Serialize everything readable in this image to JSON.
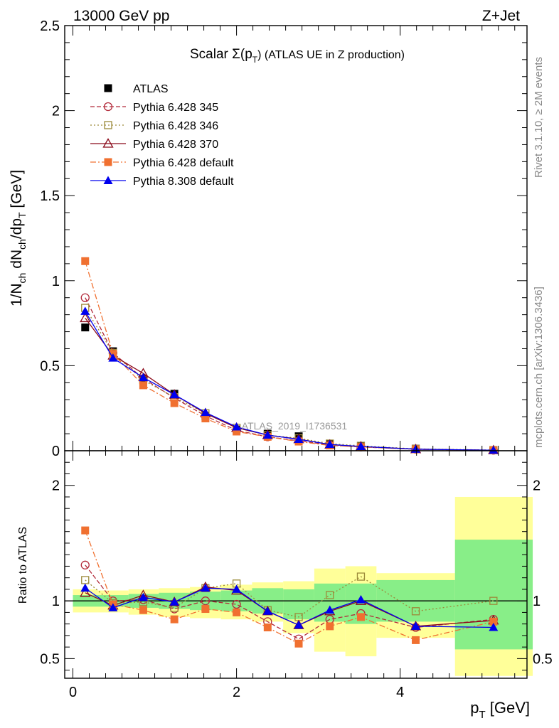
{
  "chart_data": [
    {
      "type": "line",
      "panel": "main",
      "header_left": "13000 GeV pp",
      "header_right": "Z+Jet",
      "title_prefix": "Scalar Σ(p",
      "title_sub": "T",
      "title_suffix": ") (ATLAS UE in Z production)",
      "ylabel": "1/N_ch dN_ch/dp_T [GeV]",
      "ylim": [
        0,
        2.5
      ],
      "yticks": [
        "0",
        "0.5",
        "1",
        "1.5",
        "2",
        "2.5"
      ],
      "watermark": "ATLAS_2019_I1736531",
      "x": [
        0.15,
        0.49,
        0.86,
        1.24,
        1.62,
        2.0,
        2.38,
        2.76,
        3.14,
        3.52,
        4.19,
        5.14
      ],
      "series": [
        {
          "name": "ATLAS",
          "color": "#000000",
          "marker": "square-filled",
          "dash": "none",
          "values": [
            0.725,
            0.585,
            0.42,
            0.335,
            0.205,
            0.125,
            0.1,
            0.085,
            0.04,
            0.025,
            0.012,
            0.004
          ]
        },
        {
          "name": "Pythia 6.428 345",
          "color": "#b22a3a",
          "marker": "circle-open",
          "dash": "6,3",
          "values": [
            0.9,
            0.575,
            0.425,
            0.31,
            0.205,
            0.12,
            0.082,
            0.058,
            0.034,
            0.022,
            0.009,
            0.003
          ]
        },
        {
          "name": "Pythia 6.428 346",
          "color": "#9c8a3a",
          "marker": "square-open",
          "dash": "2,3",
          "values": [
            0.84,
            0.575,
            0.415,
            0.315,
            0.22,
            0.135,
            0.092,
            0.073,
            0.042,
            0.029,
            0.011,
            0.004
          ]
        },
        {
          "name": "Pythia 6.428 370",
          "color": "#8b0a1a",
          "marker": "triangle-open",
          "dash": "none",
          "values": [
            0.78,
            0.56,
            0.455,
            0.33,
            0.22,
            0.135,
            0.092,
            0.068,
            0.036,
            0.025,
            0.009,
            0.003
          ]
        },
        {
          "name": "Pythia 6.428 default",
          "color": "#f07030",
          "marker": "square-filled",
          "dash": "8,3,2,3",
          "values": [
            1.115,
            0.57,
            0.385,
            0.28,
            0.19,
            0.113,
            0.082,
            0.054,
            0.031,
            0.022,
            0.008,
            0.003
          ]
        },
        {
          "name": "Pythia 8.308 default",
          "color": "#0000ee",
          "marker": "triangle-filled",
          "dash": "none",
          "values": [
            0.82,
            0.545,
            0.43,
            0.33,
            0.225,
            0.14,
            0.092,
            0.067,
            0.037,
            0.025,
            0.009,
            0.003
          ]
        }
      ]
    },
    {
      "type": "line",
      "panel": "ratio",
      "ylabel": "Ratio to ATLAS",
      "xlabel": "p_T [GeV]",
      "xlim": [
        -0.1,
        5.55
      ],
      "xticks": [
        "0",
        "2",
        "4"
      ],
      "ylim": [
        0.33,
        2.3
      ],
      "yticks": [
        "0.5",
        "1",
        "2"
      ],
      "x": [
        0.15,
        0.49,
        0.86,
        1.24,
        1.62,
        2.0,
        2.38,
        2.76,
        3.14,
        3.52,
        4.19,
        5.14
      ],
      "bin_edges": [
        0.0,
        0.3,
        0.68,
        1.05,
        1.43,
        1.81,
        2.19,
        2.57,
        2.95,
        3.33,
        3.71,
        4.67,
        5.62
      ],
      "band_outer": [
        [
          0.9,
          1.1
        ],
        [
          0.9,
          1.09
        ],
        [
          0.88,
          1.1
        ],
        [
          0.86,
          1.11
        ],
        [
          0.85,
          1.12
        ],
        [
          0.84,
          1.14
        ],
        [
          0.82,
          1.16
        ],
        [
          0.72,
          1.17
        ],
        [
          0.56,
          1.28
        ],
        [
          0.52,
          1.3
        ],
        [
          0.68,
          1.24
        ],
        [
          0.35,
          1.9
        ]
      ],
      "band_inner": [
        [
          0.95,
          1.05
        ],
        [
          0.95,
          1.05
        ],
        [
          0.94,
          1.06
        ],
        [
          0.93,
          1.07
        ],
        [
          0.92,
          1.08
        ],
        [
          0.91,
          1.09
        ],
        [
          0.89,
          1.11
        ],
        [
          0.84,
          1.1
        ],
        [
          0.82,
          1.15
        ],
        [
          0.8,
          1.15
        ],
        [
          0.82,
          1.18
        ],
        [
          0.58,
          1.53
        ]
      ],
      "series": [
        {
          "name": "Pythia 6.428 345",
          "color": "#b22a3a",
          "marker": "circle-open",
          "dash": "6,3",
          "values": [
            1.31,
            1.0,
            1.01,
            0.93,
            1.0,
            0.97,
            0.82,
            0.67,
            0.84,
            0.89,
            0.77,
            0.84
          ]
        },
        {
          "name": "Pythia 6.428 346",
          "color": "#9c8a3a",
          "marker": "square-open",
          "dash": "2,3",
          "values": [
            1.18,
            0.98,
            0.99,
            0.94,
            1.11,
            1.15,
            0.92,
            0.86,
            1.05,
            1.21,
            0.91,
            1.0
          ]
        },
        {
          "name": "Pythia 6.428 370",
          "color": "#8b0a1a",
          "marker": "triangle-open",
          "dash": "none",
          "values": [
            1.07,
            0.96,
            1.05,
            0.99,
            1.12,
            1.09,
            0.91,
            0.79,
            0.91,
            1.0,
            0.78,
            0.83
          ]
        },
        {
          "name": "Pythia 6.428 default",
          "color": "#f07030",
          "marker": "square-filled",
          "dash": "8,3,2,3",
          "values": [
            1.61,
            0.97,
            0.92,
            0.84,
            0.93,
            0.9,
            0.77,
            0.63,
            0.78,
            0.86,
            0.66,
            0.82
          ]
        },
        {
          "name": "Pythia 8.308 default",
          "color": "#0000ee",
          "marker": "triangle-filled",
          "dash": "none",
          "values": [
            1.11,
            0.94,
            1.03,
            0.99,
            1.11,
            1.1,
            0.91,
            0.79,
            0.92,
            1.01,
            0.78,
            0.77
          ]
        }
      ]
    }
  ],
  "side_text_right": "Rivet 3.1.10, ≥ 2M events",
  "side_text_left": "mcplots.cern.ch [arXiv:1306.3436]"
}
